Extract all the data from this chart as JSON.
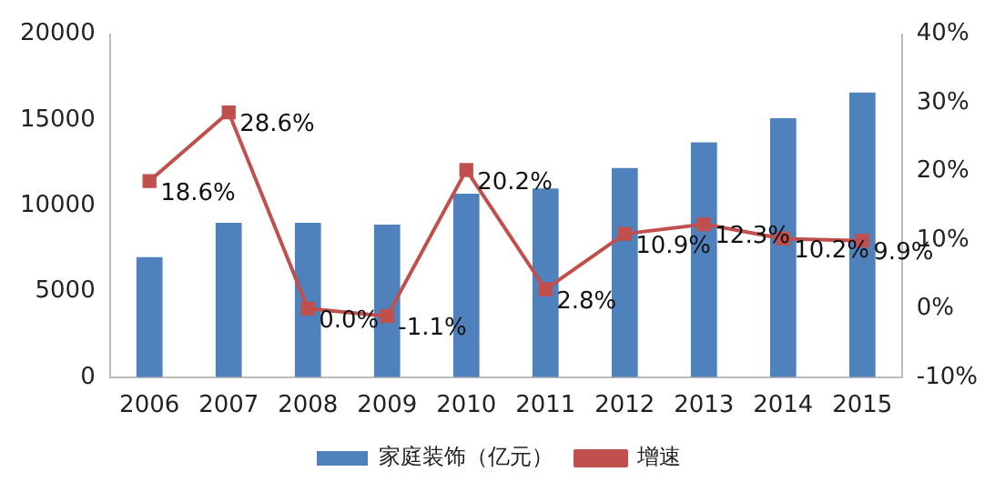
{
  "chart_data": {
    "type": "bar",
    "categories": [
      "2006",
      "2007",
      "2008",
      "2009",
      "2010",
      "2011",
      "2012",
      "2013",
      "2014",
      "2015"
    ],
    "series": [
      {
        "name": "家庭装饰（亿元）",
        "color": "#4f81bd",
        "values": [
          7000,
          9000,
          9000,
          8900,
          10700,
          11000,
          12200,
          13700,
          15100,
          16600
        ]
      },
      {
        "name": "增速",
        "type": "line",
        "axis": "y2",
        "color": "#c0504d",
        "marker": "square",
        "values": [
          18.6,
          28.6,
          0.0,
          -1.1,
          20.2,
          2.8,
          10.9,
          12.3,
          10.2,
          9.9
        ],
        "value_labels": [
          "18.6%",
          "28.6%",
          "0.0%",
          "-1.1%",
          "20.2%",
          "2.8%",
          "10.9%",
          "12.3%",
          "10.2%",
          "9.9%"
        ]
      }
    ],
    "ylim": [
      0,
      20000
    ],
    "yticks": [
      0,
      5000,
      10000,
      15000,
      20000
    ],
    "y2lim": [
      -10,
      40
    ],
    "y2ticks": [
      {
        "value": -10,
        "label": "-10%"
      },
      {
        "value": 0,
        "label": "0%"
      },
      {
        "value": 10,
        "label": "10%"
      },
      {
        "value": 20,
        "label": "20%"
      },
      {
        "value": 30,
        "label": "30%"
      },
      {
        "value": 40,
        "label": "40%"
      }
    ],
    "grid": false,
    "legend": "bottom"
  }
}
